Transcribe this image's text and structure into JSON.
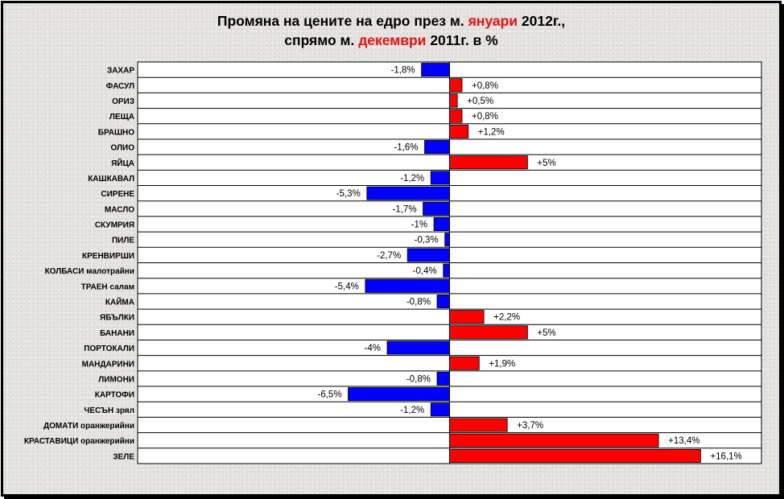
{
  "title": {
    "line1_prefix": "Промяна на цените на едро през м. ",
    "line1_highlight": "януари",
    "line1_suffix": " 2012г.,",
    "line2_prefix": "спрямо м. ",
    "line2_highlight": "декември",
    "line2_suffix": " 2011г. в %"
  },
  "colors": {
    "positive": "#ff0000",
    "negative": "#0000ff",
    "highlight_text": "#e81010",
    "plot_background": "#ffffff"
  },
  "chart_data": {
    "type": "bar",
    "orientation": "horizontal",
    "grid": "horizontal row lines",
    "xlim": [
      -20,
      20
    ],
    "categories": [
      "ЗАХАР",
      "ФАСУЛ",
      "ОРИЗ",
      "ЛЕЩА",
      "БРАШНО",
      "ОЛИО",
      "ЯЙЦА",
      "КАШКАВАЛ",
      "СИРЕНЕ",
      "МАСЛО",
      "СКУМРИЯ",
      "ПИЛЕ",
      "КРЕНВИРШИ",
      "КОЛБАСИ малотрайни",
      "ТРАЕН салам",
      "КАЙМА",
      "ЯБЪЛКИ",
      "БАНАНИ",
      "ПОРТОКАЛИ",
      "МАНДАРИНИ",
      "ЛИМОНИ",
      "КАРТОФИ",
      "ЧЕСЪН зрял",
      "ДОМАТИ оранжерийни",
      "КРАСТАВИЦИ оранжерийни",
      "ЗЕЛЕ"
    ],
    "values": [
      -1.8,
      0.8,
      0.5,
      0.8,
      1.2,
      -1.6,
      5,
      -1.2,
      -5.3,
      -1.7,
      -1,
      -0.3,
      -2.7,
      -0.4,
      -5.4,
      -0.8,
      2.2,
      5,
      -4,
      1.9,
      -0.8,
      -6.5,
      -1.2,
      3.7,
      13.4,
      16.1
    ],
    "labels": [
      "-1,8%",
      "+0,8%",
      "+0,5%",
      "+0,8%",
      "+1,2%",
      "-1,6%",
      "+5%",
      "-1,2%",
      "-5,3%",
      "-1,7%",
      "-1%",
      "-0,3%",
      "-2,7%",
      "-0,4%",
      "-5,4%",
      "-0,8%",
      "+2,2%",
      "+5%",
      "-4%",
      "+1,9%",
      "-0,8%",
      "-6,5%",
      "-1,2%",
      "+3,7%",
      "+13,4%",
      "+16,1%"
    ]
  }
}
